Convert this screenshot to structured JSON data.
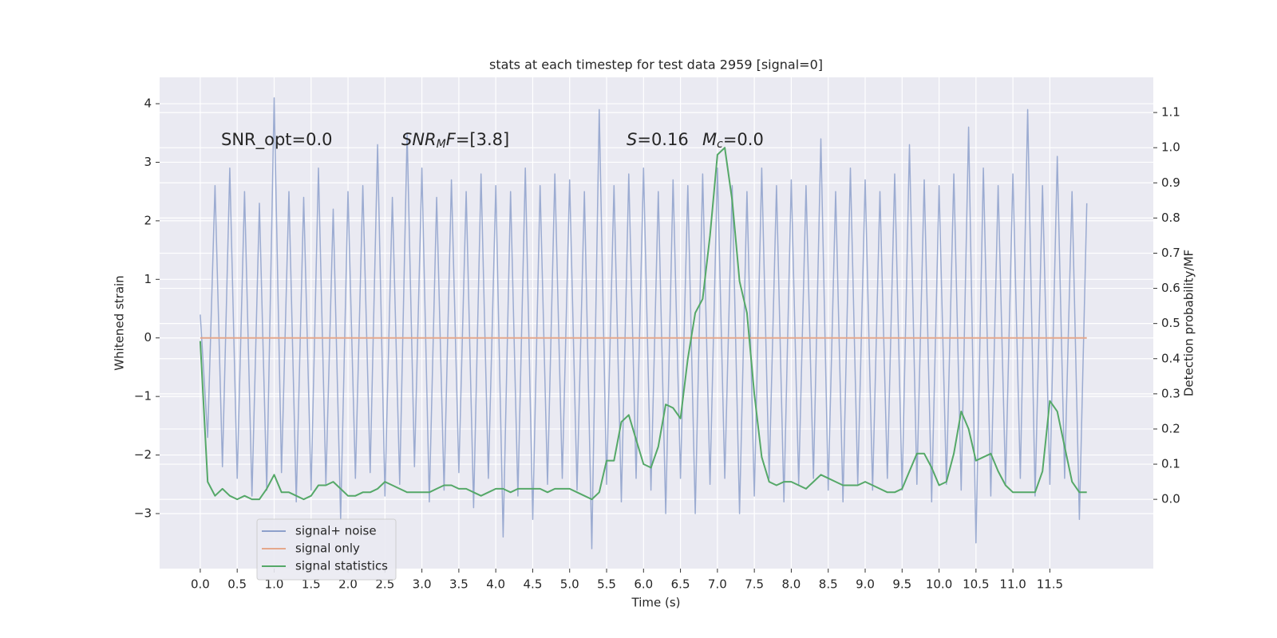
{
  "chart_data": {
    "type": "line",
    "title": "stats at each timestep for test data 2959 [signal=0]",
    "xlabel": "Time (s)",
    "ylabel": "Whitened strain",
    "y2label": "Detection probability/MF",
    "annotations": [
      [
        {
          "text": "SNR_opt=0.0",
          "style": "normal"
        }
      ],
      [
        {
          "text": "SNR",
          "style": "italic"
        },
        {
          "text": "M",
          "style": "sub"
        },
        {
          "text": "F",
          "style": "italic"
        },
        {
          "text": "=[3.8]",
          "style": "normal"
        }
      ],
      [
        {
          "text": "S",
          "style": "italic"
        },
        {
          "text": "=0.16",
          "style": "normal"
        }
      ],
      [
        {
          "text": "M",
          "style": "italic"
        },
        {
          "text": "c",
          "style": "sub"
        },
        {
          "text": "=0.0",
          "style": "normal"
        }
      ]
    ],
    "x": [
      0,
      0.1,
      0.2,
      0.3,
      0.4,
      0.5,
      0.6,
      0.7,
      0.8,
      0.9,
      1,
      1.1,
      1.2,
      1.3,
      1.4,
      1.5,
      1.6,
      1.7,
      1.8,
      1.9,
      2,
      2.1,
      2.2,
      2.3,
      2.4,
      2.5,
      2.6,
      2.7,
      2.8,
      2.9,
      3,
      3.1,
      3.2,
      3.3,
      3.4,
      3.5,
      3.6,
      3.7,
      3.8,
      3.9,
      4,
      4.1,
      4.2,
      4.3,
      4.4,
      4.5,
      4.6,
      4.7,
      4.8,
      4.9,
      5,
      5.1,
      5.2,
      5.3,
      5.4,
      5.5,
      5.6,
      5.7,
      5.8,
      5.9,
      6,
      6.1,
      6.2,
      6.3,
      6.4,
      6.5,
      6.6,
      6.7,
      6.8,
      6.9,
      7,
      7.1,
      7.2,
      7.3,
      7.4,
      7.5,
      7.6,
      7.7,
      7.8,
      7.9,
      8,
      8.1,
      8.2,
      8.3,
      8.4,
      8.5,
      8.6,
      8.7,
      8.8,
      8.9,
      9,
      9.1,
      9.2,
      9.3,
      9.4,
      9.5,
      9.6,
      9.7,
      9.8,
      9.9,
      10,
      10.1,
      10.2,
      10.3,
      10.4,
      10.5,
      10.6,
      10.7,
      10.8,
      10.9,
      11,
      11.1,
      11.2,
      11.3,
      11.4,
      11.5,
      11.6,
      11.7,
      11.8,
      11.9,
      12
    ],
    "series": [
      {
        "name": "signal+ noise",
        "color": "#8da0cb",
        "values": [
          0.4,
          -1.7,
          2.6,
          -2.2,
          2.9,
          -2.4,
          2.5,
          -2.7,
          2.3,
          -2.6,
          4.1,
          -2.3,
          2.5,
          -2.8,
          2.4,
          -2.6,
          2.9,
          -2.5,
          2.2,
          -3.1,
          2.5,
          -2.4,
          2.6,
          -2.3,
          3.3,
          -2.7,
          2.4,
          -2.5,
          3.5,
          -2.2,
          2.9,
          -2.8,
          2.4,
          -2.6,
          2.7,
          -2.3,
          2.5,
          -2.9,
          2.8,
          -2.4,
          2.6,
          -3.4,
          2.5,
          -2.7,
          2.9,
          -3.1,
          2.6,
          -2.5,
          2.8,
          -2.4,
          2.7,
          -2.6,
          2.5,
          -3.6,
          3.9,
          -2.5,
          2.6,
          -2.8,
          2.8,
          -2.4,
          2.9,
          -2.6,
          2.5,
          -3.0,
          2.7,
          -2.4,
          2.6,
          -3.0,
          2.8,
          -2.5,
          2.9,
          -2.4,
          2.6,
          -3.0,
          2.5,
          -2.7,
          2.9,
          -2.4,
          2.6,
          -2.8,
          2.7,
          -2.5,
          2.6,
          -2.4,
          3.4,
          -2.6,
          2.5,
          -2.8,
          2.9,
          -2.5,
          2.7,
          -2.6,
          2.5,
          -2.4,
          2.8,
          -2.6,
          3.3,
          -2.5,
          2.7,
          -2.8,
          2.6,
          -2.5,
          2.8,
          -2.6,
          3.6,
          -3.5,
          2.9,
          -2.7,
          2.6,
          -2.5,
          2.8,
          -2.4,
          3.9,
          -2.7,
          2.6,
          -2.5,
          3.1,
          -2.4,
          2.5,
          -3.1,
          2.3
        ]
      },
      {
        "name": "signal only",
        "color": "#e5a88c",
        "x": [
          0,
          12
        ],
        "values": [
          0,
          0
        ]
      },
      {
        "name": "signal statistics",
        "color": "#55a868",
        "axis": "y2",
        "values": [
          0.45,
          0.05,
          0.01,
          0.03,
          0.01,
          0.0,
          0.01,
          0.0,
          0.0,
          0.03,
          0.07,
          0.02,
          0.02,
          0.01,
          0.0,
          0.01,
          0.04,
          0.04,
          0.05,
          0.03,
          0.01,
          0.01,
          0.02,
          0.02,
          0.03,
          0.05,
          0.04,
          0.03,
          0.02,
          0.02,
          0.02,
          0.02,
          0.03,
          0.04,
          0.04,
          0.03,
          0.03,
          0.02,
          0.01,
          0.02,
          0.03,
          0.03,
          0.02,
          0.03,
          0.03,
          0.03,
          0.03,
          0.02,
          0.03,
          0.03,
          0.03,
          0.02,
          0.01,
          0.0,
          0.02,
          0.11,
          0.11,
          0.22,
          0.24,
          0.17,
          0.1,
          0.09,
          0.15,
          0.27,
          0.26,
          0.23,
          0.4,
          0.53,
          0.57,
          0.75,
          0.98,
          1.0,
          0.85,
          0.62,
          0.53,
          0.3,
          0.12,
          0.05,
          0.04,
          0.05,
          0.05,
          0.04,
          0.03,
          0.05,
          0.07,
          0.06,
          0.05,
          0.04,
          0.04,
          0.04,
          0.05,
          0.04,
          0.03,
          0.02,
          0.02,
          0.03,
          0.08,
          0.13,
          0.13,
          0.09,
          0.04,
          0.05,
          0.13,
          0.25,
          0.2,
          0.11,
          0.12,
          0.13,
          0.08,
          0.04,
          0.02,
          0.02,
          0.02,
          0.02,
          0.08,
          0.28,
          0.25,
          0.15,
          0.05,
          0.02,
          0.02
        ]
      }
    ],
    "xlim": [
      -0.55,
      12.9
    ],
    "xticks": [
      {
        "value": 0,
        "label": "0.0"
      },
      0.5,
      {
        "value": 1,
        "label": "1.0"
      },
      1.5,
      {
        "value": 2,
        "label": "2.0"
      },
      2.5,
      {
        "value": 3,
        "label": "3.0"
      },
      3.5,
      {
        "value": 4,
        "label": "4.0"
      },
      4.5,
      {
        "value": 5,
        "label": "5.0"
      },
      5.5,
      {
        "value": 6,
        "label": "6.0"
      },
      6.5,
      {
        "value": 7,
        "label": "7.0"
      },
      7.5,
      {
        "value": 8,
        "label": "8.0"
      },
      8.5,
      {
        "value": 9,
        "label": "9.0"
      },
      9.5,
      {
        "value": 10,
        "label": "10.0"
      },
      10.5,
      {
        "value": 11,
        "label": "11.0"
      },
      11.5
    ],
    "ylim": [
      -3.94,
      4.45
    ],
    "yticks": [
      {
        "value": -3,
        "label": "−3"
      },
      {
        "value": -2,
        "label": "−2"
      },
      {
        "value": -1,
        "label": "−1"
      },
      0,
      1,
      2,
      3,
      4
    ],
    "y2lim": [
      -0.197,
      1.2
    ],
    "y2ticks": [
      {
        "value": 0,
        "label": "0.0"
      },
      0.1,
      0.2,
      0.3,
      0.4,
      0.5,
      0.6,
      0.7,
      0.8,
      0.9,
      {
        "value": 1,
        "label": "1.0"
      },
      1.1
    ],
    "grid": true,
    "legend": "lower left",
    "background": "#eaeaf2"
  }
}
